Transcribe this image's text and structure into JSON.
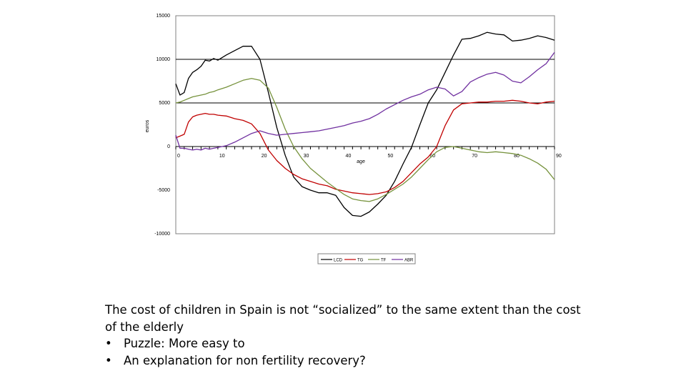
{
  "chart_data": {
    "type": "line",
    "title": "",
    "xlabel": "age",
    "ylabel": "euros",
    "xlim": [
      0,
      90
    ],
    "ylim": [
      -10000,
      15000
    ],
    "x_ticks": [
      "0",
      "10",
      "20",
      "30",
      "40",
      "50",
      "60",
      "70",
      "80",
      "90"
    ],
    "y_ticks": [
      "15000",
      "10000",
      "5000",
      "0",
      "-5000",
      "-10000"
    ],
    "gridlines_y": [
      10000,
      5000
    ],
    "legend_position": "bottom-center",
    "x": [
      0,
      1,
      2,
      3,
      4,
      5,
      6,
      7,
      8,
      9,
      10,
      12,
      14,
      16,
      18,
      20,
      22,
      24,
      26,
      28,
      30,
      32,
      34,
      36,
      38,
      40,
      42,
      44,
      46,
      48,
      50,
      52,
      54,
      56,
      58,
      60,
      62,
      64,
      66,
      68,
      70,
      72,
      74,
      76,
      78,
      80,
      82,
      84,
      86,
      88,
      90
    ],
    "series": [
      {
        "name": "LCD",
        "color": "#000000",
        "values": [
          7200,
          5900,
          6200,
          7800,
          8500,
          8800,
          9200,
          9900,
          9800,
          10100,
          9900,
          10500,
          11000,
          11500,
          11500,
          10000,
          6200,
          2200,
          -1000,
          -3500,
          -4600,
          -5000,
          -5300,
          -5300,
          -5600,
          -7000,
          -7900,
          -8000,
          -7500,
          -6600,
          -5600,
          -4000,
          -2000,
          -100,
          2500,
          5000,
          6500,
          8500,
          10500,
          12300,
          12400,
          12700,
          13100,
          12900,
          12800,
          12100,
          12200,
          12400,
          12700,
          12500,
          12200
        ]
      },
      {
        "name": "TG",
        "color": "#c00000",
        "values": [
          1000,
          1200,
          1400,
          2800,
          3400,
          3600,
          3700,
          3800,
          3700,
          3700,
          3600,
          3500,
          3200,
          3000,
          2600,
          1500,
          -400,
          -1600,
          -2500,
          -3200,
          -3700,
          -4000,
          -4300,
          -4500,
          -4900,
          -5100,
          -5300,
          -5400,
          -5500,
          -5400,
          -5200,
          -4700,
          -4000,
          -3000,
          -2000,
          -1200,
          0,
          2400,
          4200,
          4900,
          5000,
          5100,
          5100,
          5200,
          5200,
          5300,
          5200,
          5000,
          4900,
          5100,
          5200
        ]
      },
      {
        "name": "TF",
        "color": "#76923c",
        "values": [
          5000,
          5100,
          5300,
          5500,
          5700,
          5800,
          5900,
          6000,
          6200,
          6300,
          6500,
          6800,
          7200,
          7600,
          7800,
          7600,
          6700,
          4500,
          2000,
          0,
          -1400,
          -2500,
          -3300,
          -4100,
          -4800,
          -5500,
          -6000,
          -6200,
          -6300,
          -6000,
          -5500,
          -4900,
          -4300,
          -3500,
          -2500,
          -1500,
          -600,
          -100,
          0,
          -200,
          -400,
          -600,
          -700,
          -600,
          -700,
          -800,
          -1000,
          -1400,
          -1900,
          -2600,
          -3800
        ]
      },
      {
        "name": "ABR",
        "color": "#7030a0",
        "values": [
          1300,
          -200,
          -200,
          -300,
          -400,
          -300,
          -400,
          -200,
          -300,
          -200,
          -100,
          100,
          500,
          1000,
          1500,
          1800,
          1500,
          1300,
          1400,
          1500,
          1600,
          1700,
          1800,
          2000,
          2200,
          2400,
          2700,
          2900,
          3200,
          3700,
          4300,
          4800,
          5300,
          5700,
          6000,
          6500,
          6800,
          6600,
          5800,
          6300,
          7400,
          7900,
          8300,
          8500,
          8200,
          7500,
          7300,
          8000,
          8800,
          9500,
          10800
        ]
      }
    ]
  },
  "caption": {
    "line1": "The cost of children in Spain is not “socialized” to the same extent than the cost",
    "line2": "of the elderly",
    "bullet": "•",
    "item1": "Puzzle: More easy to",
    "item2": "An explanation for non fertility recovery?"
  }
}
